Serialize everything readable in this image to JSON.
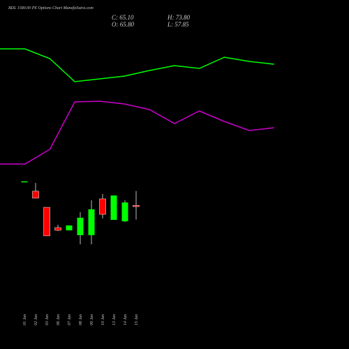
{
  "chart_data": [
    {
      "type": "line",
      "title": "BDL 1580.00 PE Options Chart MunafaSutra.com",
      "categories": [
        null,
        null,
        null,
        null,
        null,
        null,
        null,
        null,
        null,
        null,
        null,
        null
      ],
      "ylim": [
        0,
        250
      ],
      "series": [
        {
          "color": "#00ff00",
          "values": [
            180,
            180,
            166,
            133,
            137,
            141,
            149,
            156,
            152,
            168,
            162,
            158
          ]
        },
        {
          "color": "#cc00cc",
          "values": [
            15,
            15,
            36,
            104,
            105,
            101,
            93,
            73,
            91,
            76,
            63,
            67
          ]
        }
      ]
    },
    {
      "type": "candlestick",
      "info": [
        "C: 65.10",
        "H: 73.80",
        "O: 65.80",
        "L: 57.85"
      ],
      "categories": [
        "01 Jan",
        "02 Jan",
        "03 Jan",
        "06 Jan",
        "07 Jan",
        "08 Jan",
        "09 Jan",
        "10 Jan",
        "13 Jan",
        "14 Jan",
        "15 Jan"
      ],
      "open": [
        79.0,
        73.7,
        64.7,
        53.4,
        51.9,
        49.2,
        49.2,
        69.4,
        57.7,
        56.9,
        65.8
      ],
      "high": [
        79.2,
        78.3,
        64.7,
        55.0,
        54.6,
        62.0,
        68.6,
        72.1,
        71.3,
        68.6,
        73.8
      ],
      "low": [
        79.0,
        69.8,
        48.8,
        51.5,
        51.9,
        44.1,
        44.1,
        58.5,
        57.7,
        56.5,
        57.85
      ],
      "close": [
        79.2,
        69.8,
        48.8,
        51.9,
        54.6,
        58.9,
        63.6,
        60.8,
        71.3,
        67.4,
        65.1
      ],
      "up_color": "#00ff00",
      "down_color": "#ff0000",
      "ylim": [
        40,
        90
      ]
    }
  ]
}
